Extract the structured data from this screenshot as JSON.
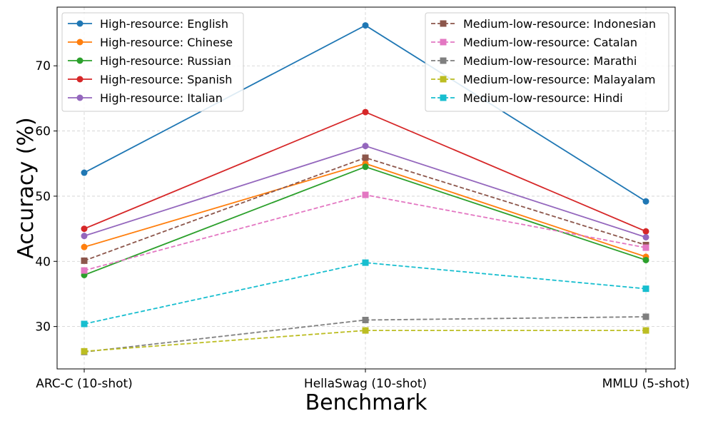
{
  "chart_data": {
    "type": "line",
    "title": "",
    "xlabel": "Benchmark",
    "ylabel": "Accuracy (%)",
    "categories": [
      "ARC-C (10-shot)",
      "HellaSwag (10-shot)",
      "MMLU (5-shot)"
    ],
    "ylim": [
      23.5,
      79.0
    ],
    "yticks": [
      30,
      40,
      50,
      60,
      70
    ],
    "grid": true,
    "legend_left_placement": "top-left",
    "legend_right_placement": "top-right",
    "series": [
      {
        "name": "High-resource: English",
        "values": [
          53.6,
          76.2,
          49.2
        ],
        "color": "#1f77b4",
        "style": "solid",
        "marker": "circle",
        "group": "left"
      },
      {
        "name": "High-resource: Chinese",
        "values": [
          42.2,
          55.0,
          40.7
        ],
        "color": "#ff7f0e",
        "style": "solid",
        "marker": "circle",
        "group": "left"
      },
      {
        "name": "High-resource: Russian",
        "values": [
          37.9,
          54.5,
          40.2
        ],
        "color": "#2ca02c",
        "style": "solid",
        "marker": "circle",
        "group": "left"
      },
      {
        "name": "High-resource: Spanish",
        "values": [
          45.0,
          62.9,
          44.6
        ],
        "color": "#d62728",
        "style": "solid",
        "marker": "circle",
        "group": "left"
      },
      {
        "name": "High-resource: Italian",
        "values": [
          43.9,
          57.7,
          43.7
        ],
        "color": "#9467bd",
        "style": "solid",
        "marker": "circle",
        "group": "left"
      },
      {
        "name": "Medium-low-resource: Indonesian",
        "values": [
          40.1,
          55.9,
          42.5
        ],
        "color": "#8c564b",
        "style": "dashed",
        "marker": "square",
        "group": "right"
      },
      {
        "name": "Medium-low-resource: Catalan",
        "values": [
          38.6,
          50.2,
          42.1
        ],
        "color": "#e377c2",
        "style": "dashed",
        "marker": "square",
        "group": "right"
      },
      {
        "name": "Medium-low-resource: Marathi",
        "values": [
          26.1,
          31.0,
          31.5
        ],
        "color": "#7f7f7f",
        "style": "dashed",
        "marker": "square",
        "group": "right"
      },
      {
        "name": "Medium-low-resource: Malayalam",
        "values": [
          26.2,
          29.4,
          29.4
        ],
        "color": "#bcbd22",
        "style": "dashed",
        "marker": "square",
        "group": "right"
      },
      {
        "name": "Medium-low-resource: Hindi",
        "values": [
          30.4,
          39.8,
          35.8
        ],
        "color": "#17becf",
        "style": "dashed",
        "marker": "square",
        "group": "right"
      }
    ]
  }
}
